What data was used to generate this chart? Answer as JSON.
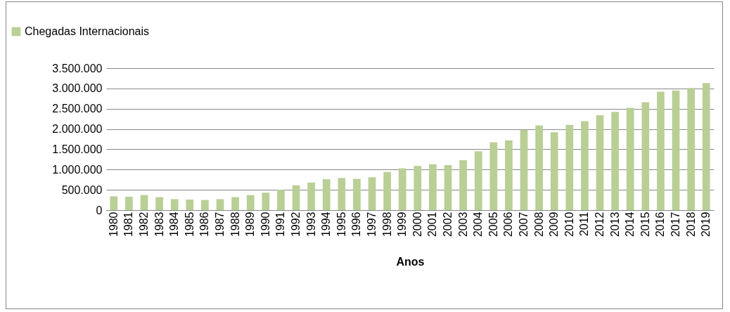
{
  "chart_data": {
    "type": "bar",
    "xlabel": "Anos",
    "categories": [
      "1980",
      "1981",
      "1982",
      "1983",
      "1984",
      "1985",
      "1986",
      "1987",
      "1988",
      "1989",
      "1990",
      "1991",
      "1992",
      "1993",
      "1994",
      "1995",
      "1996",
      "1997",
      "1998",
      "1999",
      "2000",
      "2001",
      "2002",
      "2003",
      "2004",
      "2005",
      "2006",
      "2007",
      "2008",
      "2009",
      "2010",
      "2011",
      "2012",
      "2013",
      "2014",
      "2015",
      "2016",
      "2017",
      "2018",
      "2019"
    ],
    "series": [
      {
        "name": "Chegadas Internacionais",
        "color": "#b9cf95",
        "values": [
          340000,
          330000,
          370000,
          320000,
          270000,
          260000,
          250000,
          270000,
          320000,
          370000,
          430000,
          500000,
          610000,
          680000,
          760000,
          790000,
          770000,
          810000,
          940000,
          1030000,
          1090000,
          1130000,
          1110000,
          1230000,
          1450000,
          1670000,
          1720000,
          1980000,
          2090000,
          1920000,
          2100000,
          2190000,
          2340000,
          2420000,
          2520000,
          2660000,
          2920000,
          2950000,
          3010000,
          3130000
        ]
      }
    ],
    "ylim": [
      0,
      3500000
    ],
    "yticks": [
      0,
      {
        "value": 500000,
        "label": "500.000"
      },
      {
        "value": 1000000,
        "label": "1.000.000"
      },
      {
        "value": 1500000,
        "label": "1.500.000"
      },
      {
        "value": 2000000,
        "label": "2.000.000"
      },
      {
        "value": 2500000,
        "label": "2.500.000"
      },
      {
        "value": 3000000,
        "label": "3.000.000"
      },
      {
        "value": 3500000,
        "label": "3.500.000"
      }
    ],
    "grid": "y",
    "legend": "top left"
  }
}
